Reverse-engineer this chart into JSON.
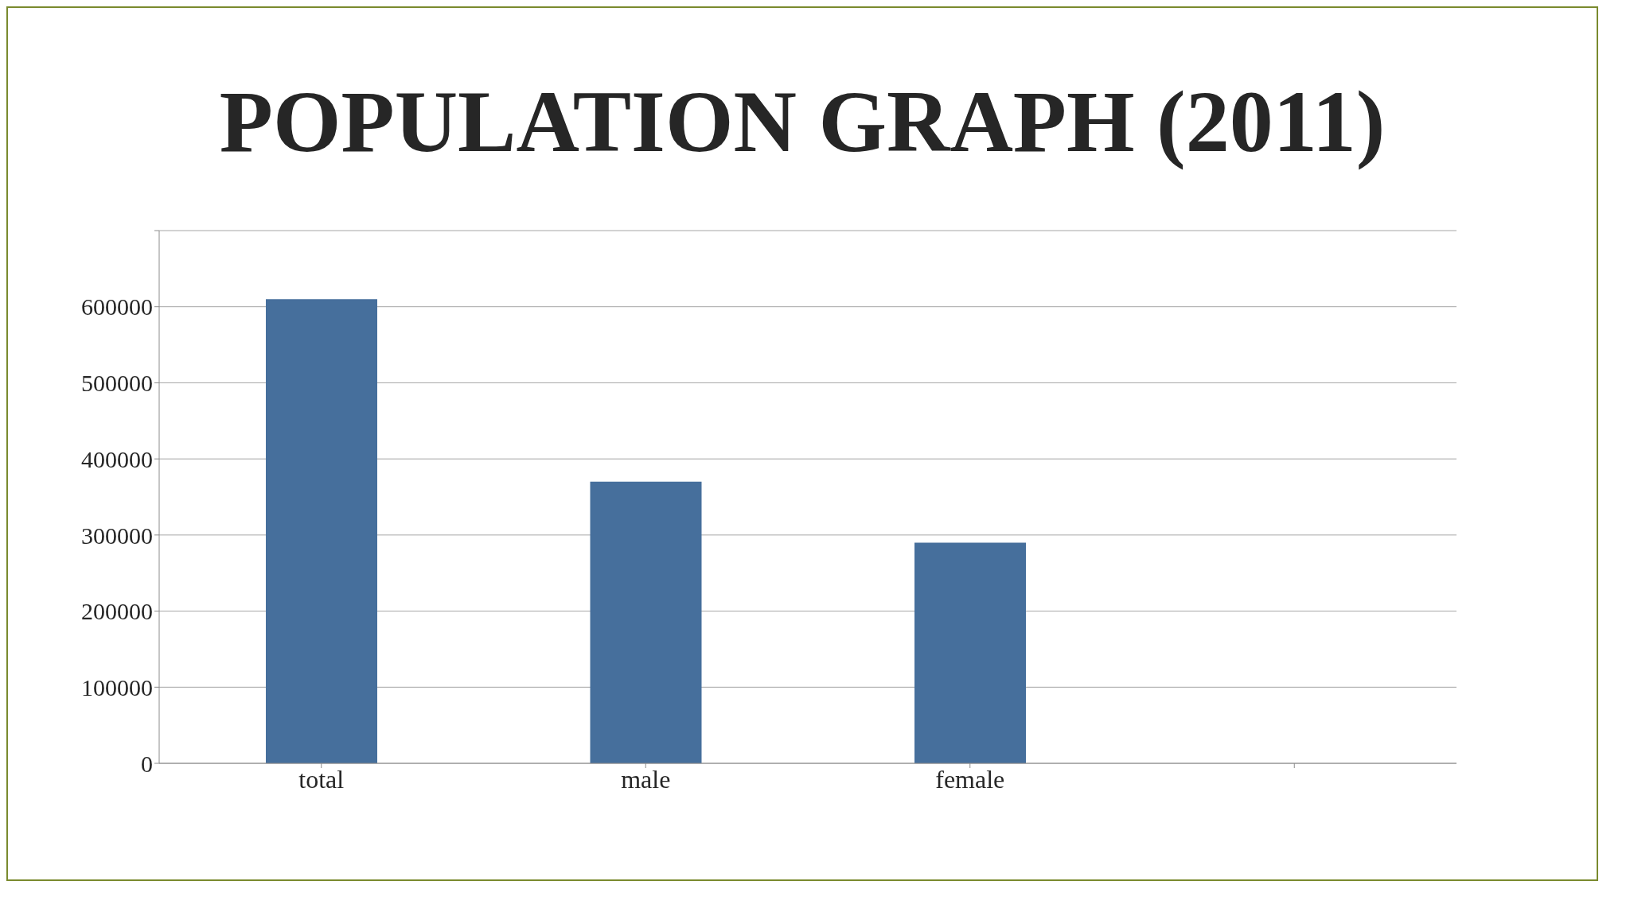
{
  "chart_data": {
    "type": "bar",
    "title": "POPULATION GRAPH (2011)",
    "categories": [
      "total",
      "male",
      "female",
      null
    ],
    "values": [
      610000,
      370000,
      290000,
      null
    ],
    "color": "#466f9c",
    "ylim": [
      0,
      700000
    ],
    "yticks": [
      0,
      100000,
      200000,
      300000,
      400000,
      500000,
      600000,
      {
        "value": 700000,
        "label": null
      }
    ],
    "grid": "y"
  }
}
